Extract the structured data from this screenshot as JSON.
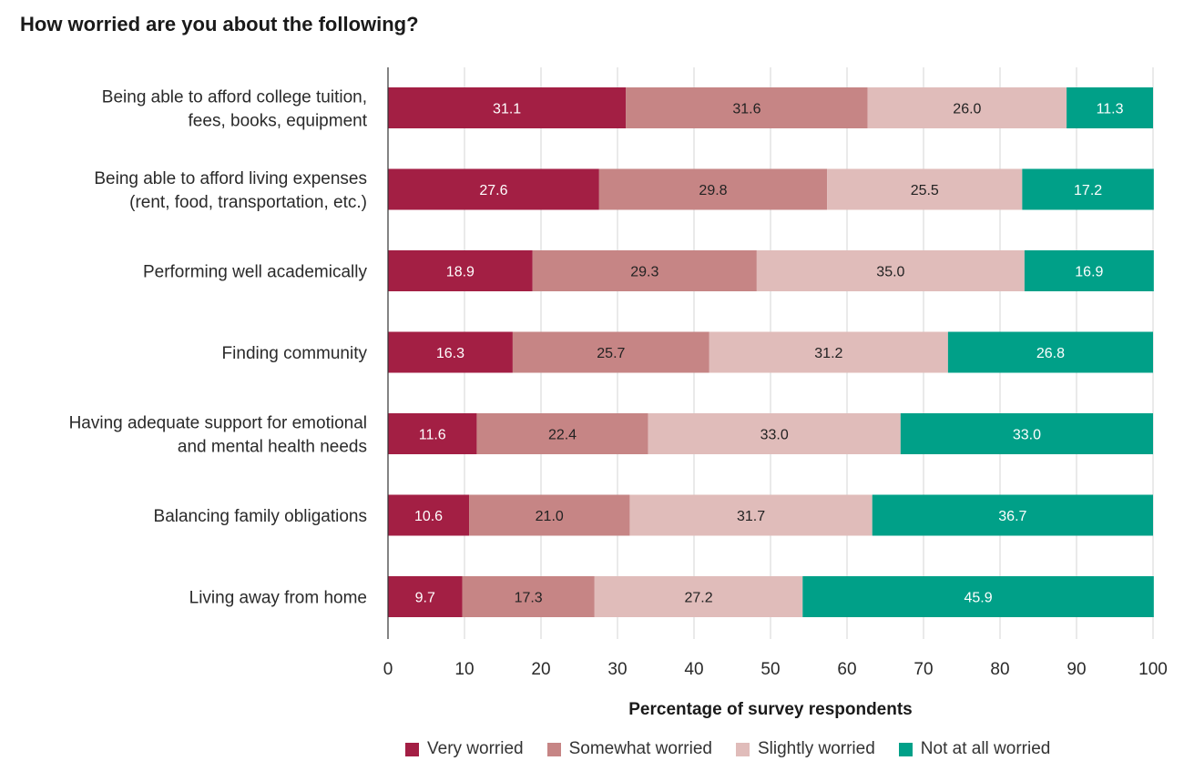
{
  "chart_data": {
    "type": "bar",
    "orientation": "horizontal-stacked",
    "title": "How worried are you about the following?",
    "xlabel": "Percentage of survey respondents",
    "ylabel": "",
    "xlim": [
      0,
      100
    ],
    "xticks": [
      0,
      10,
      20,
      30,
      40,
      50,
      60,
      70,
      80,
      90,
      100
    ],
    "grid": true,
    "legend_position": "bottom",
    "categories": [
      [
        "Being able to afford college tuition,",
        "fees, books, equipment"
      ],
      [
        "Being able to afford living expenses",
        "(rent, food, transportation, etc.)"
      ],
      [
        "Performing well academically"
      ],
      [
        "Finding community"
      ],
      [
        "Having adequate support for emotional",
        "and mental health needs"
      ],
      [
        "Balancing family obligations"
      ],
      [
        "Living away from home"
      ]
    ],
    "series": [
      {
        "name": "Very worried",
        "color": "#a31f44",
        "label_color": "#ffffff",
        "values": [
          31.1,
          27.6,
          18.9,
          16.3,
          11.6,
          10.6,
          9.7
        ]
      },
      {
        "name": "Somewhat worried",
        "color": "#c68585",
        "label_color": "#222222",
        "values": [
          31.6,
          29.8,
          29.3,
          25.7,
          22.4,
          21.0,
          17.3
        ]
      },
      {
        "name": "Slightly worried",
        "color": "#e0bcba",
        "label_color": "#222222",
        "values": [
          26.0,
          25.5,
          35.0,
          31.2,
          33.0,
          31.7,
          27.2
        ]
      },
      {
        "name": "Not at all worried",
        "color": "#00a088",
        "label_color": "#ffffff",
        "values": [
          11.3,
          17.2,
          16.9,
          26.8,
          33.0,
          36.7,
          45.9
        ]
      }
    ]
  }
}
